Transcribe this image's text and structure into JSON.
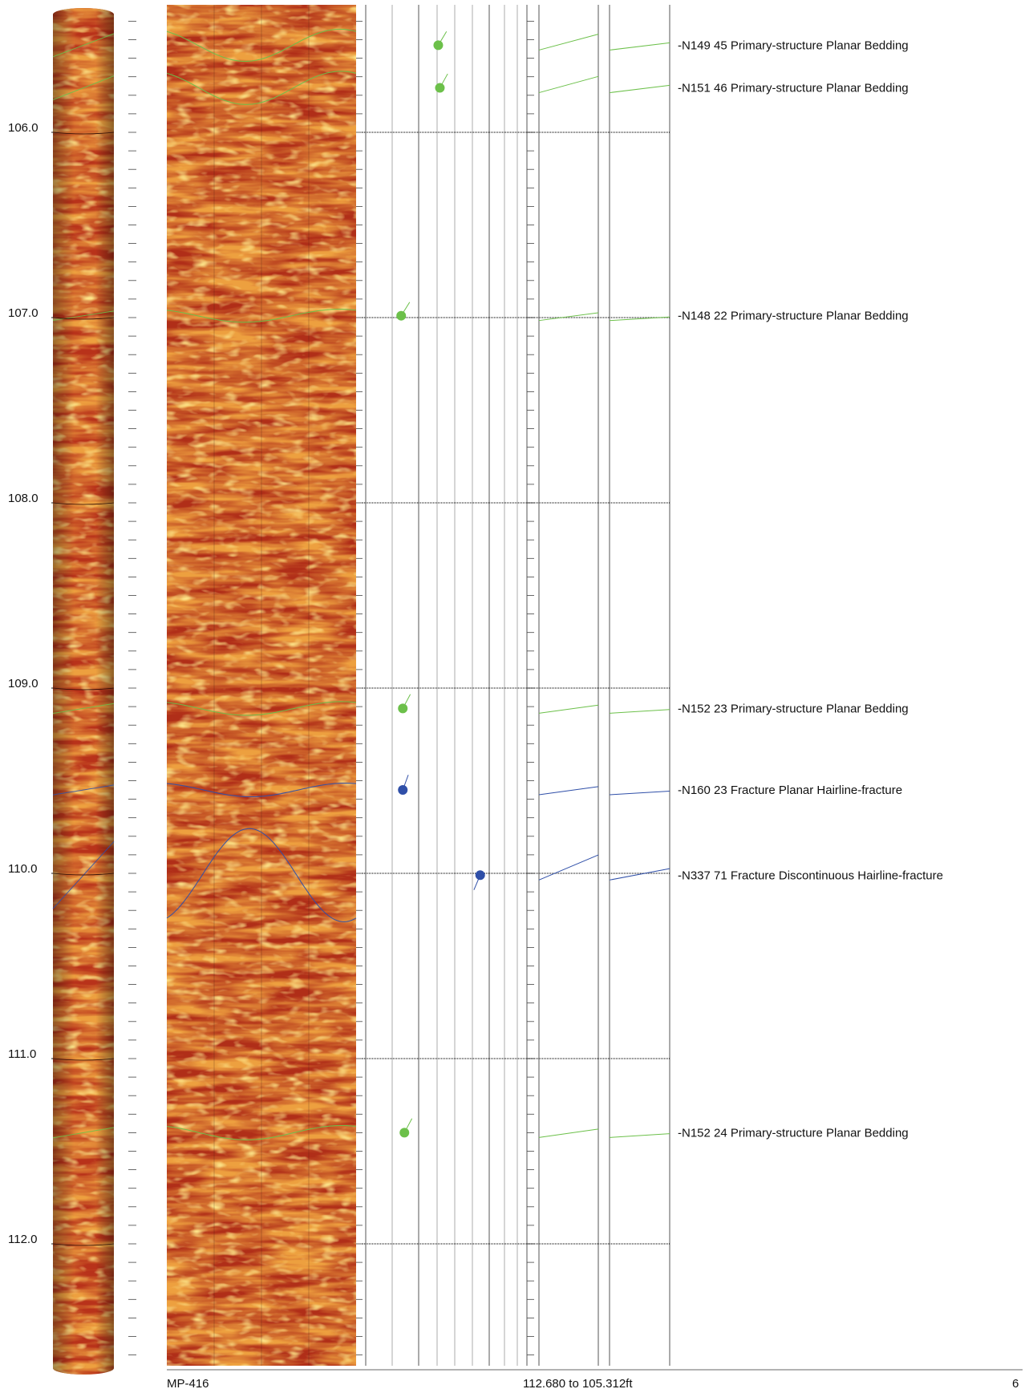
{
  "footer": {
    "well": "MP-416",
    "range": "112.680 to 105.312ft",
    "page": "6"
  },
  "colors": {
    "primary_structure": "#6cc04a",
    "fracture": "#2f4fa8",
    "image_dark": "#7a1a0c",
    "image_mid": "#c2331a",
    "image_light": "#f2a83a"
  },
  "chart_data": {
    "type": "scatter",
    "title": "",
    "xlabel": "",
    "ylabel": "",
    "y_axis": {
      "ylim": [
        105.31,
        112.68
      ],
      "direction": "depth-down",
      "unit": "ft",
      "ticks": [
        "106.0",
        "107.0",
        "108.0",
        "109.0",
        "110.0",
        "111.0",
        "112.0"
      ]
    },
    "x_axis": {
      "quantity": "dip",
      "xlim": [
        0,
        90
      ]
    },
    "grid": true,
    "series": [
      {
        "name": "Primary-structure",
        "color": "#6cc04a",
        "points": [
          {
            "depth": 105.53,
            "azimuth": 149,
            "dip": 45,
            "label": "N149 45 Primary-structure Planar Bedding"
          },
          {
            "depth": 105.76,
            "azimuth": 151,
            "dip": 46,
            "label": "N151 46 Primary-structure Planar Bedding"
          },
          {
            "depth": 106.99,
            "azimuth": 148,
            "dip": 22,
            "label": "N148 22 Primary-structure Planar Bedding"
          },
          {
            "depth": 109.11,
            "azimuth": 152,
            "dip": 23,
            "label": "N152 23 Primary-structure Planar Bedding"
          },
          {
            "depth": 111.4,
            "azimuth": 152,
            "dip": 24,
            "label": "N152 24 Primary-structure Planar Bedding"
          }
        ]
      },
      {
        "name": "Fracture",
        "color": "#2f4fa8",
        "points": [
          {
            "depth": 109.55,
            "azimuth": 160,
            "dip": 23,
            "label": "N160 23 Fracture Planar Hairline-fracture"
          },
          {
            "depth": 110.01,
            "azimuth": 337,
            "dip": 71,
            "label": "N337 71 Fracture Discontinuous Hairline-fracture"
          }
        ]
      }
    ]
  }
}
